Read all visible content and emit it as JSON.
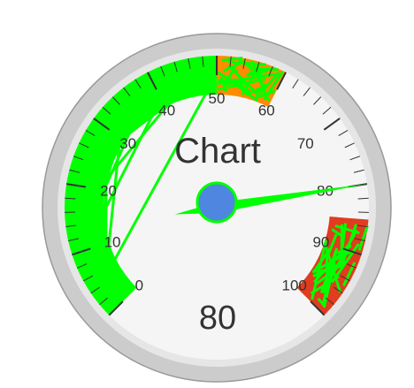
{
  "chart_data": {
    "type": "gauge",
    "title": "Chart",
    "value": 80,
    "value_label": "80",
    "min": 0,
    "max": 100,
    "tick_labels": [
      "0",
      "10",
      "20",
      "30",
      "40",
      "50",
      "60",
      "70",
      "80",
      "90",
      "100"
    ],
    "bands": [
      {
        "from": 0,
        "to": 50,
        "color": "#00ff00"
      },
      {
        "from": 50,
        "to": 60,
        "color": "#ff8c00"
      },
      {
        "from": 85,
        "to": 100,
        "color": "#e03c1f"
      }
    ],
    "overlay_color": "#00ff00",
    "needle_color": "#00ff00",
    "hub_color": "#4f86e0"
  }
}
